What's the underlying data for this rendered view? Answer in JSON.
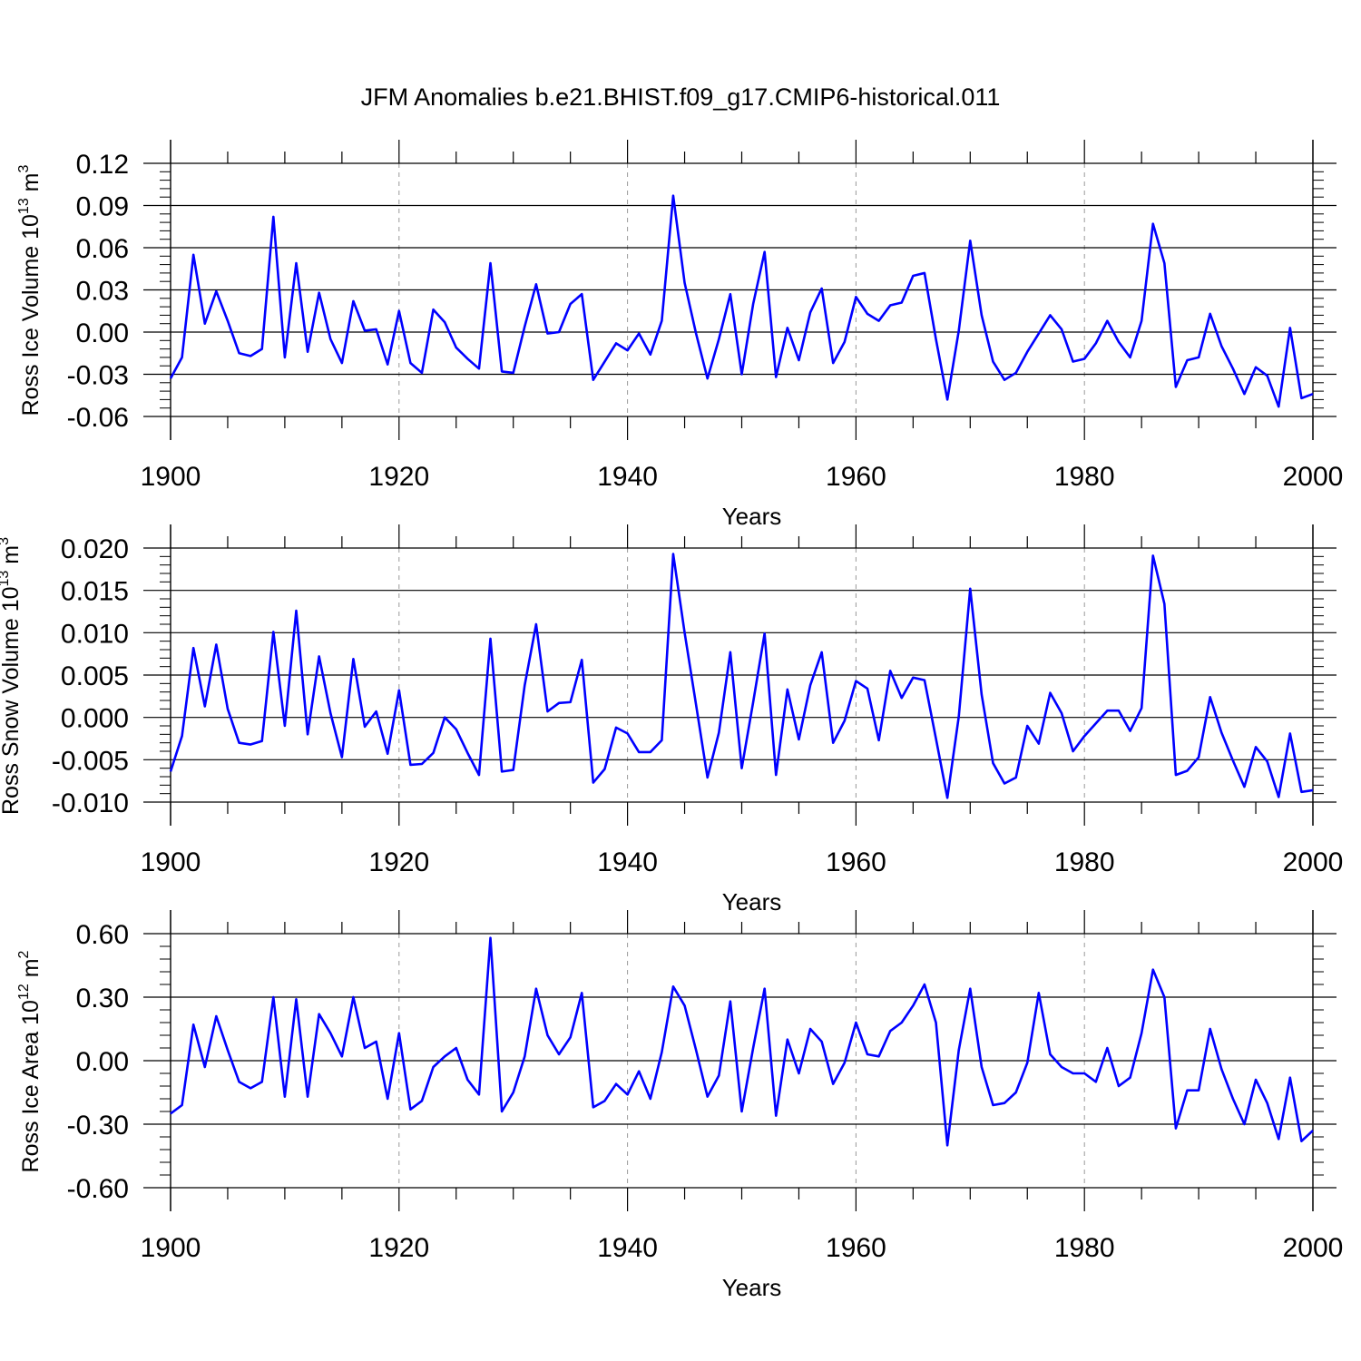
{
  "title": "JFM Anomalies b.e21.BHIST.f09_g17.CMIP6-historical.011",
  "colors": {
    "line": "#0000ff",
    "axis": "#000000",
    "grid": "#999999"
  },
  "chart_data": [
    {
      "type": "line",
      "name": "ice-volume",
      "title": "JFM Anomalies b.e21.BHIST.f09_g17.CMIP6-historical.011",
      "xlabel": "Years",
      "ylabel": {
        "prefix": "Ross Ice Volume 10",
        "exponent": "13",
        "unit": " m",
        "unit_exponent": "3"
      },
      "xlim": [
        1900,
        2000
      ],
      "ylim": [
        -0.06,
        0.12
      ],
      "xticks": [
        "1900",
        "1920",
        "1940",
        "1960",
        "1980",
        "2000"
      ],
      "yticks": [
        "0.12",
        "0.09",
        "0.06",
        "0.03",
        "0.00",
        "-0.03",
        "-0.06"
      ],
      "ytick_values": [
        0.12,
        0.09,
        0.06,
        0.03,
        0.0,
        -0.03,
        -0.06
      ],
      "x_start": 1900,
      "values": [
        -0.033,
        -0.018,
        0.055,
        0.006,
        0.029,
        0.008,
        -0.015,
        -0.017,
        -0.012,
        0.082,
        -0.018,
        0.049,
        -0.014,
        0.028,
        -0.005,
        -0.022,
        0.022,
        0.001,
        0.002,
        -0.023,
        0.015,
        -0.022,
        -0.029,
        0.016,
        0.007,
        -0.011,
        -0.019,
        -0.026,
        0.049,
        -0.028,
        -0.029,
        0.004,
        0.034,
        -0.001,
        0.0,
        0.02,
        0.027,
        -0.034,
        -0.021,
        -0.008,
        -0.013,
        -0.001,
        -0.016,
        0.008,
        0.097,
        0.035,
        -0.001,
        -0.033,
        -0.005,
        0.027,
        -0.03,
        0.02,
        0.057,
        -0.032,
        0.003,
        -0.02,
        0.014,
        0.031,
        -0.022,
        -0.007,
        0.025,
        0.013,
        0.008,
        0.019,
        0.021,
        0.04,
        0.042,
        -0.005,
        -0.048,
        0.001,
        0.065,
        0.012,
        -0.021,
        -0.034,
        -0.029,
        -0.014,
        -0.001,
        0.012,
        0.002,
        -0.021,
        -0.019,
        -0.008,
        0.008,
        -0.007,
        -0.018,
        0.008,
        0.077,
        0.049,
        -0.039,
        -0.02,
        -0.018,
        0.013,
        -0.01,
        -0.026,
        -0.044,
        -0.025,
        -0.031,
        -0.053,
        0.003,
        -0.047,
        -0.044
      ]
    },
    {
      "type": "line",
      "name": "snow-volume",
      "xlabel": "Years",
      "ylabel": {
        "prefix": "Ross Snow Volume 10",
        "exponent": "13",
        "unit": " m",
        "unit_exponent": "3"
      },
      "xlim": [
        1900,
        2000
      ],
      "ylim": [
        -0.01,
        0.02
      ],
      "xticks": [
        "1900",
        "1920",
        "1940",
        "1960",
        "1980",
        "2000"
      ],
      "yticks": [
        "0.020",
        "0.015",
        "0.010",
        "0.005",
        "0.000",
        "-0.005",
        "-0.010"
      ],
      "ytick_values": [
        0.02,
        0.015,
        0.01,
        0.005,
        0.0,
        -0.005,
        -0.01
      ],
      "x_start": 1900,
      "values": [
        -0.0064,
        -0.0022,
        0.0082,
        0.0013,
        0.0086,
        0.001,
        -0.003,
        -0.0032,
        -0.0028,
        0.0101,
        -0.001,
        0.0126,
        -0.002,
        0.0072,
        0.0005,
        -0.0047,
        0.0069,
        -0.0011,
        0.0007,
        -0.0043,
        0.0032,
        -0.0056,
        -0.0055,
        -0.0042,
        0.0,
        -0.0014,
        -0.0042,
        -0.0068,
        0.0093,
        -0.0064,
        -0.0062,
        0.0038,
        0.011,
        0.0007,
        0.0017,
        0.0018,
        0.0068,
        -0.0077,
        -0.0061,
        -0.0012,
        -0.0019,
        -0.0041,
        -0.0041,
        -0.0027,
        0.0193,
        0.01,
        0.0015,
        -0.0071,
        -0.0018,
        0.0077,
        -0.006,
        0.0018,
        0.0099,
        -0.0068,
        0.0033,
        -0.0026,
        0.0038,
        0.0077,
        -0.003,
        -0.0004,
        0.0043,
        0.0034,
        -0.0027,
        0.0055,
        0.0023,
        0.0047,
        0.0044,
        -0.0025,
        -0.0095,
        0.0001,
        0.0152,
        0.0027,
        -0.0054,
        -0.0078,
        -0.0071,
        -0.001,
        -0.0031,
        0.0029,
        0.0005,
        -0.004,
        -0.0022,
        -0.0007,
        0.0008,
        0.0008,
        -0.0016,
        0.0011,
        0.0191,
        0.0134,
        -0.0068,
        -0.0063,
        -0.0047,
        0.0024,
        -0.0018,
        -0.0051,
        -0.0082,
        -0.0035,
        -0.0052,
        -0.0094,
        -0.0019,
        -0.0088,
        -0.0086
      ]
    },
    {
      "type": "line",
      "name": "ice-area",
      "xlabel": "Years",
      "ylabel": {
        "prefix": "Ross Ice Area 10",
        "exponent": "12",
        "unit": " m",
        "unit_exponent": "2"
      },
      "xlim": [
        1900,
        2000
      ],
      "ylim": [
        -0.6,
        0.6
      ],
      "xticks": [
        "1900",
        "1920",
        "1940",
        "1960",
        "1980",
        "2000"
      ],
      "yticks": [
        "0.60",
        "0.30",
        "0.00",
        "-0.30",
        "-0.60"
      ],
      "ytick_values": [
        0.6,
        0.3,
        0.0,
        -0.3,
        -0.6
      ],
      "x_start": 1900,
      "values": [
        -0.25,
        -0.21,
        0.17,
        -0.03,
        0.21,
        0.05,
        -0.1,
        -0.13,
        -0.1,
        0.3,
        -0.17,
        0.29,
        -0.17,
        0.22,
        0.13,
        0.02,
        0.3,
        0.06,
        0.09,
        -0.18,
        0.13,
        -0.23,
        -0.19,
        -0.03,
        0.02,
        0.06,
        -0.09,
        -0.16,
        0.58,
        -0.24,
        -0.15,
        0.02,
        0.34,
        0.12,
        0.03,
        0.11,
        0.32,
        -0.22,
        -0.19,
        -0.11,
        -0.16,
        -0.05,
        -0.18,
        0.04,
        0.35,
        0.26,
        0.05,
        -0.17,
        -0.07,
        0.28,
        -0.24,
        0.06,
        0.34,
        -0.26,
        0.1,
        -0.06,
        0.15,
        0.09,
        -0.11,
        -0.01,
        0.18,
        0.03,
        0.02,
        0.14,
        0.18,
        0.26,
        0.36,
        0.18,
        -0.4,
        0.05,
        0.34,
        -0.03,
        -0.21,
        -0.2,
        -0.15,
        -0.01,
        0.32,
        0.03,
        -0.03,
        -0.06,
        -0.06,
        -0.1,
        0.06,
        -0.12,
        -0.08,
        0.13,
        0.43,
        0.3,
        -0.32,
        -0.14,
        -0.14,
        0.15,
        -0.04,
        -0.18,
        -0.3,
        -0.09,
        -0.2,
        -0.37,
        -0.08,
        -0.38,
        -0.33
      ]
    }
  ]
}
